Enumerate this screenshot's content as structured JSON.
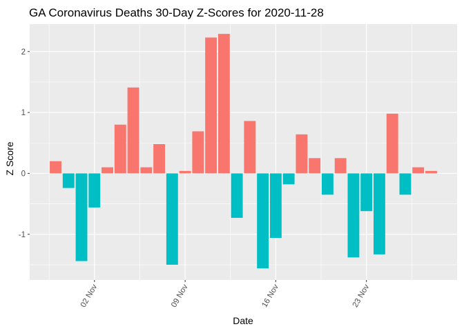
{
  "chart_data": {
    "type": "bar",
    "title": "GA Coronavirus Deaths 30-Day Z-Scores for 2020-11-28",
    "xlabel": "Date",
    "ylabel": "Z Score",
    "x_type": "date",
    "x_range": [
      "2020-10-28",
      "2020-11-30"
    ],
    "ylim": [
      -1.75,
      2.45
    ],
    "y_ticks": [
      -1,
      0,
      1,
      2
    ],
    "x_ticks": [
      {
        "date": "2020-11-02",
        "label": "02 Nov"
      },
      {
        "date": "2020-11-09",
        "label": "09 Nov"
      },
      {
        "date": "2020-11-16",
        "label": "16 Nov"
      },
      {
        "date": "2020-11-23",
        "label": "23 Nov"
      }
    ],
    "grid": true,
    "legend": "none",
    "colors": {
      "positive": "#F8766D",
      "negative": "#00BFC4",
      "panel": "#EBEBEB",
      "grid": "#FFFFFF"
    },
    "bars": [
      {
        "date": "2020-10-30",
        "value": 0.2
      },
      {
        "date": "2020-10-31",
        "value": -0.24
      },
      {
        "date": "2020-11-01",
        "value": -1.44
      },
      {
        "date": "2020-11-02",
        "value": -0.56
      },
      {
        "date": "2020-11-03",
        "value": 0.1
      },
      {
        "date": "2020-11-04",
        "value": 0.8
      },
      {
        "date": "2020-11-05",
        "value": 1.41
      },
      {
        "date": "2020-11-06",
        "value": 0.1
      },
      {
        "date": "2020-11-07",
        "value": 0.48
      },
      {
        "date": "2020-11-08",
        "value": -1.5
      },
      {
        "date": "2020-11-09",
        "value": 0.04
      },
      {
        "date": "2020-11-10",
        "value": 0.69
      },
      {
        "date": "2020-11-11",
        "value": 2.23
      },
      {
        "date": "2020-11-12",
        "value": 2.29
      },
      {
        "date": "2020-11-13",
        "value": -0.73
      },
      {
        "date": "2020-11-14",
        "value": 0.86
      },
      {
        "date": "2020-11-15",
        "value": -1.56
      },
      {
        "date": "2020-11-16",
        "value": -1.06
      },
      {
        "date": "2020-11-17",
        "value": -0.18
      },
      {
        "date": "2020-11-18",
        "value": 0.64
      },
      {
        "date": "2020-11-19",
        "value": 0.25
      },
      {
        "date": "2020-11-20",
        "value": -0.35
      },
      {
        "date": "2020-11-21",
        "value": 0.25
      },
      {
        "date": "2020-11-22",
        "value": -1.38
      },
      {
        "date": "2020-11-23",
        "value": -0.62
      },
      {
        "date": "2020-11-24",
        "value": -1.33
      },
      {
        "date": "2020-11-25",
        "value": 0.98
      },
      {
        "date": "2020-11-26",
        "value": -0.35
      },
      {
        "date": "2020-11-27",
        "value": 0.1
      },
      {
        "date": "2020-11-28",
        "value": 0.04
      }
    ]
  }
}
